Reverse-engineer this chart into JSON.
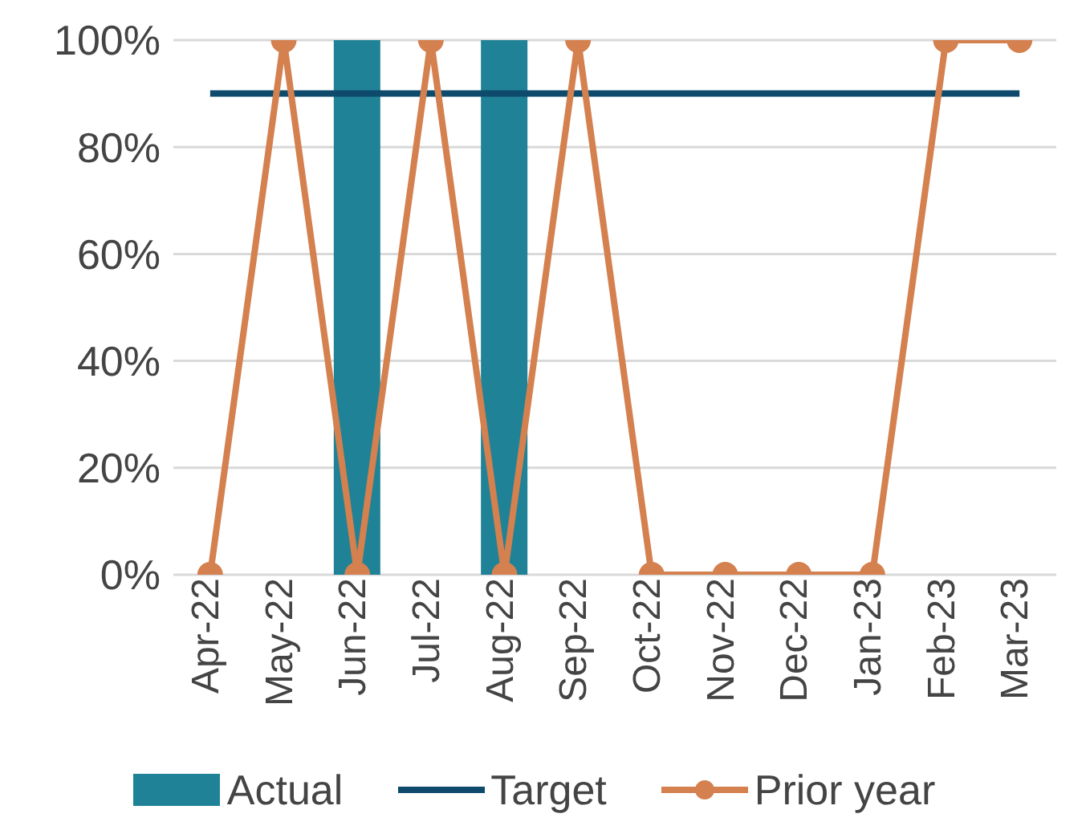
{
  "chart_data": {
    "type": "bar",
    "categories": [
      "Apr-22",
      "May-22",
      "Jun-22",
      "Jul-22",
      "Aug-22",
      "Sep-22",
      "Oct-22",
      "Nov-22",
      "Dec-22",
      "Jan-23",
      "Feb-23",
      "Mar-23"
    ],
    "series": [
      {
        "name": "Actual",
        "color": "#208296",
        "values": [
          null,
          null,
          100,
          null,
          100,
          null,
          null,
          null,
          null,
          null,
          null,
          null
        ]
      },
      {
        "name": "Target",
        "type": "line",
        "color": "#0e4a6c",
        "marker": "none",
        "values": [
          90,
          90,
          90,
          90,
          90,
          90,
          90,
          90,
          90,
          90,
          90,
          90
        ]
      },
      {
        "name": "Prior year",
        "type": "line",
        "color": "#d4804f",
        "marker": "circle",
        "values": [
          0,
          100,
          0,
          100,
          0,
          100,
          0,
          0,
          0,
          0,
          100,
          100
        ]
      }
    ],
    "ylim": [
      0,
      100
    ],
    "yticks": [
      {
        "value": 0,
        "label": "0%"
      },
      {
        "value": 20,
        "label": "20%"
      },
      {
        "value": 40,
        "label": "40%"
      },
      {
        "value": 60,
        "label": "60%"
      },
      {
        "value": 80,
        "label": "80%"
      },
      {
        "value": 100,
        "label": "100%"
      }
    ],
    "grid": "y",
    "legend": "bottom"
  }
}
